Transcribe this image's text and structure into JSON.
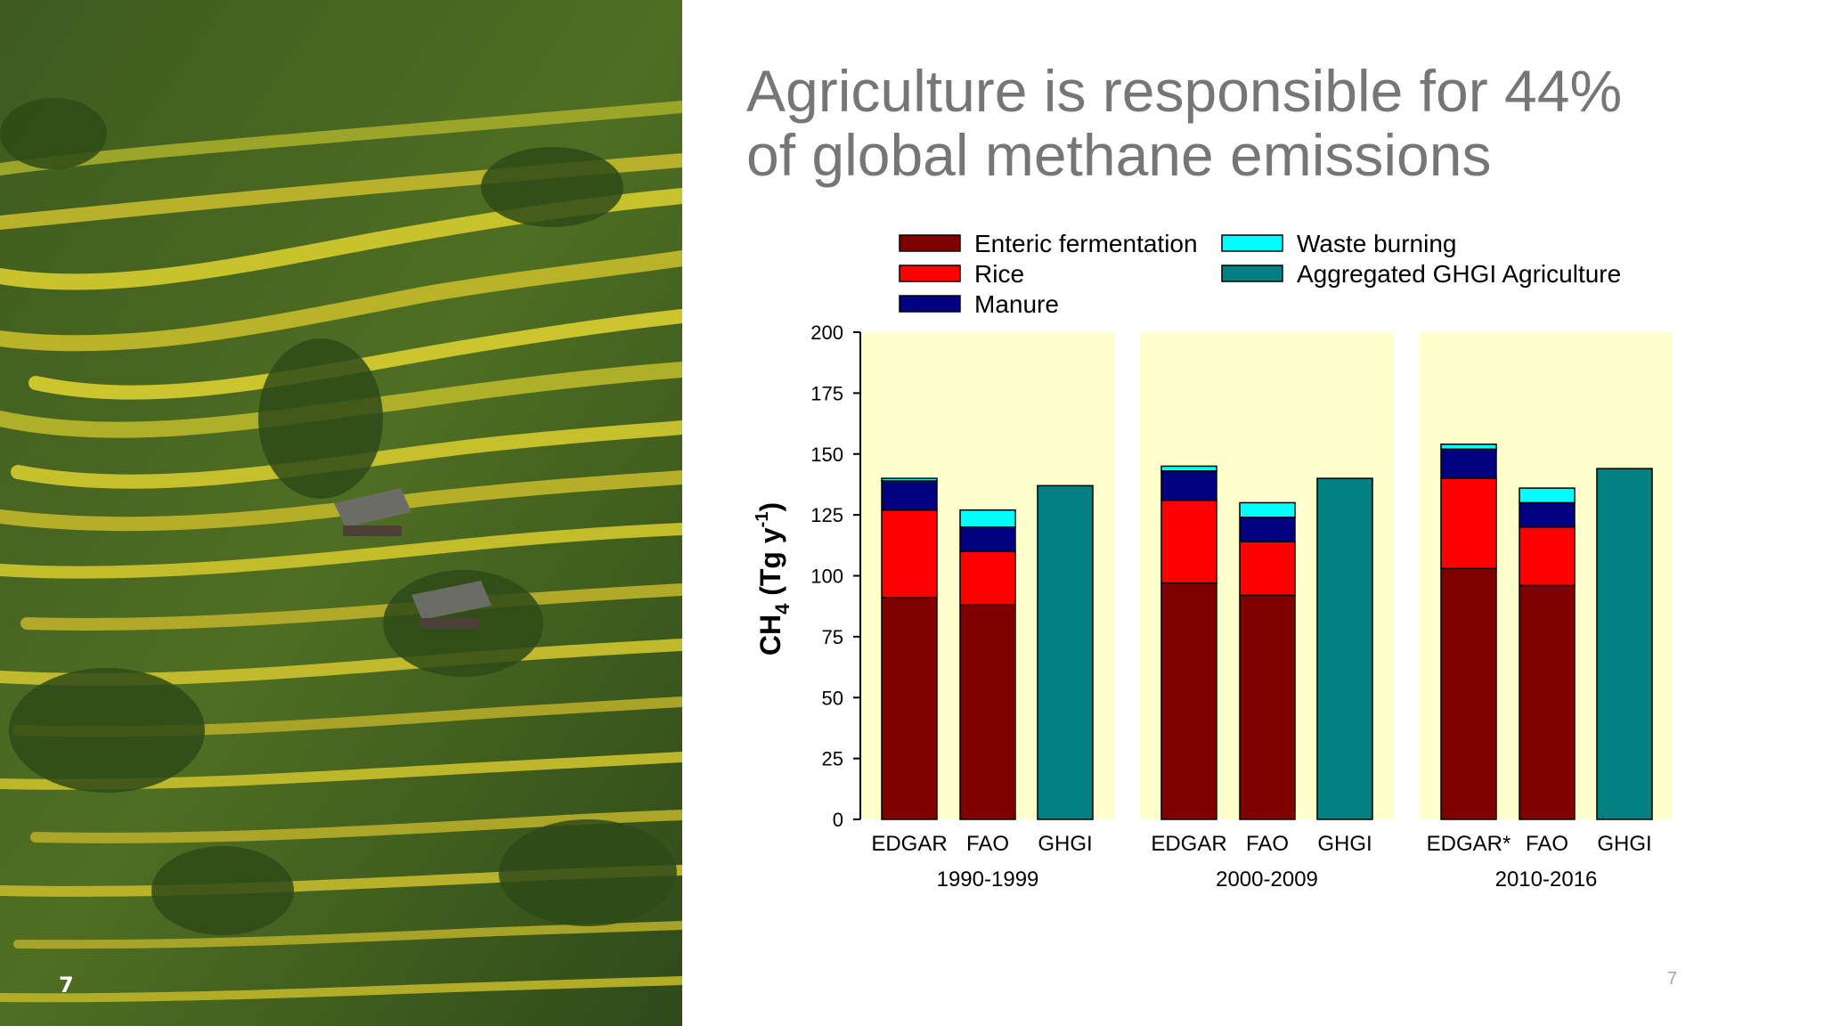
{
  "slide": {
    "title_lines": [
      "Agriculture is responsible for 44%",
      "of global methane emissions"
    ],
    "slide_number_left": "7",
    "slide_number_right": "7"
  },
  "photo": {
    "icon": "rice-terraces-photo"
  },
  "chart_data": {
    "type": "bar",
    "stacked": true,
    "title": "",
    "ylabel_main": "CH",
    "ylabel_sub": "4",
    "ylabel_units_open": " (Tg y",
    "ylabel_sup": "-1",
    "ylabel_close": ")",
    "ylim": [
      0,
      200
    ],
    "yticks": [
      0,
      25,
      50,
      75,
      100,
      125,
      150,
      175,
      200
    ],
    "panel_background": "#ffffcc",
    "legend": {
      "placement": "top",
      "entries": [
        {
          "name": "Enteric fermentation",
          "color": "#800000"
        },
        {
          "name": "Rice",
          "color": "#ff0000"
        },
        {
          "name": "Manure",
          "color": "#000080"
        },
        {
          "name": "Waste burning",
          "color": "#00ffff"
        },
        {
          "name": "Aggregated GHGI Agriculture",
          "color": "#008080"
        }
      ]
    },
    "groups": [
      {
        "period": "1990-1999",
        "bars": [
          {
            "label": "EDGAR",
            "segments": [
              {
                "series": "Enteric fermentation",
                "value": 91
              },
              {
                "series": "Rice",
                "value": 36
              },
              {
                "series": "Manure",
                "value": 12
              },
              {
                "series": "Waste burning",
                "value": 1
              }
            ]
          },
          {
            "label": "FAO",
            "segments": [
              {
                "series": "Enteric fermentation",
                "value": 88
              },
              {
                "series": "Rice",
                "value": 22
              },
              {
                "series": "Manure",
                "value": 10
              },
              {
                "series": "Waste burning",
                "value": 7
              }
            ]
          },
          {
            "label": "GHGI",
            "segments": [
              {
                "series": "Aggregated GHGI Agriculture",
                "value": 137
              }
            ]
          }
        ]
      },
      {
        "period": "2000-2009",
        "bars": [
          {
            "label": "EDGAR",
            "segments": [
              {
                "series": "Enteric fermentation",
                "value": 97
              },
              {
                "series": "Rice",
                "value": 34
              },
              {
                "series": "Manure",
                "value": 12
              },
              {
                "series": "Waste burning",
                "value": 2
              }
            ]
          },
          {
            "label": "FAO",
            "segments": [
              {
                "series": "Enteric fermentation",
                "value": 92
              },
              {
                "series": "Rice",
                "value": 22
              },
              {
                "series": "Manure",
                "value": 10
              },
              {
                "series": "Waste burning",
                "value": 6
              }
            ]
          },
          {
            "label": "GHGI",
            "segments": [
              {
                "series": "Aggregated GHGI Agriculture",
                "value": 140
              }
            ]
          }
        ]
      },
      {
        "period": "2010-2016",
        "bars": [
          {
            "label": "EDGAR*",
            "segments": [
              {
                "series": "Enteric fermentation",
                "value": 103
              },
              {
                "series": "Rice",
                "value": 37
              },
              {
                "series": "Manure",
                "value": 12
              },
              {
                "series": "Waste burning",
                "value": 2
              }
            ]
          },
          {
            "label": "FAO",
            "segments": [
              {
                "series": "Enteric fermentation",
                "value": 96
              },
              {
                "series": "Rice",
                "value": 24
              },
              {
                "series": "Manure",
                "value": 10
              },
              {
                "series": "Waste burning",
                "value": 6
              }
            ]
          },
          {
            "label": "GHGI",
            "segments": [
              {
                "series": "Aggregated GHGI Agriculture",
                "value": 144
              }
            ]
          }
        ]
      }
    ]
  }
}
